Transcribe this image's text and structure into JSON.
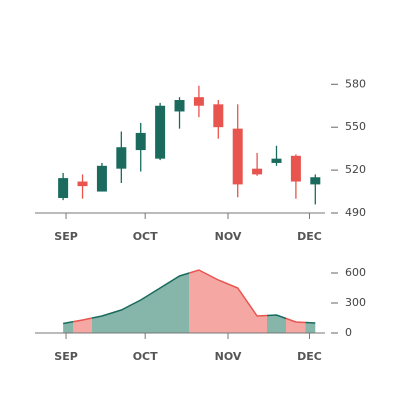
{
  "chart_data": [
    {
      "type": "candlestick",
      "x": [
        0,
        1,
        2,
        3,
        4,
        5,
        6,
        7,
        8,
        9,
        10,
        11,
        12,
        13
      ],
      "open": [
        500.5,
        512,
        505,
        521,
        534,
        528,
        561,
        571,
        566,
        549,
        521,
        525,
        530,
        510
      ],
      "high": [
        518,
        517,
        525,
        547,
        553,
        567,
        571,
        579,
        569,
        566,
        532,
        537,
        531,
        517
      ],
      "low": [
        499,
        500,
        505,
        511,
        519,
        527,
        549,
        557,
        542,
        501,
        516,
        523,
        500,
        496
      ],
      "close": [
        514.4,
        508.8,
        523,
        536,
        546,
        565,
        569,
        565,
        550,
        510,
        517,
        528,
        512,
        515
      ],
      "up_color": "#1a6b5e",
      "down_color": "#e8554e",
      "xlim": [
        -1.45,
        13.5
      ],
      "xticks": [
        {
          "value": 0.15,
          "label": "SEP"
        },
        {
          "value": 4.23,
          "label": "OCT"
        },
        {
          "value": 8.5,
          "label": "NOV"
        },
        {
          "value": 12.7,
          "label": "DEC"
        }
      ],
      "ylim": [
        490,
        590
      ],
      "yticks": [
        490,
        520,
        550,
        580
      ]
    },
    {
      "type": "area",
      "x": [
        0,
        1,
        2,
        3,
        4,
        5,
        6,
        7,
        8,
        9,
        10,
        11,
        12,
        13
      ],
      "values": [
        95,
        130,
        170,
        230,
        330,
        450,
        570,
        630,
        530,
        450,
        170,
        180,
        110,
        100
      ],
      "up_color": "#86b5aa",
      "down_color": "#f5a8a3",
      "xlim": [
        -1.45,
        13.5
      ],
      "xticks": [
        {
          "value": 0.15,
          "label": "SEP"
        },
        {
          "value": 4.23,
          "label": "OCT"
        },
        {
          "value": 8.5,
          "label": "NOV"
        },
        {
          "value": 12.7,
          "label": "DEC"
        }
      ],
      "ylim": [
        0,
        700
      ],
      "yticks": [
        0,
        300,
        600
      ]
    }
  ]
}
